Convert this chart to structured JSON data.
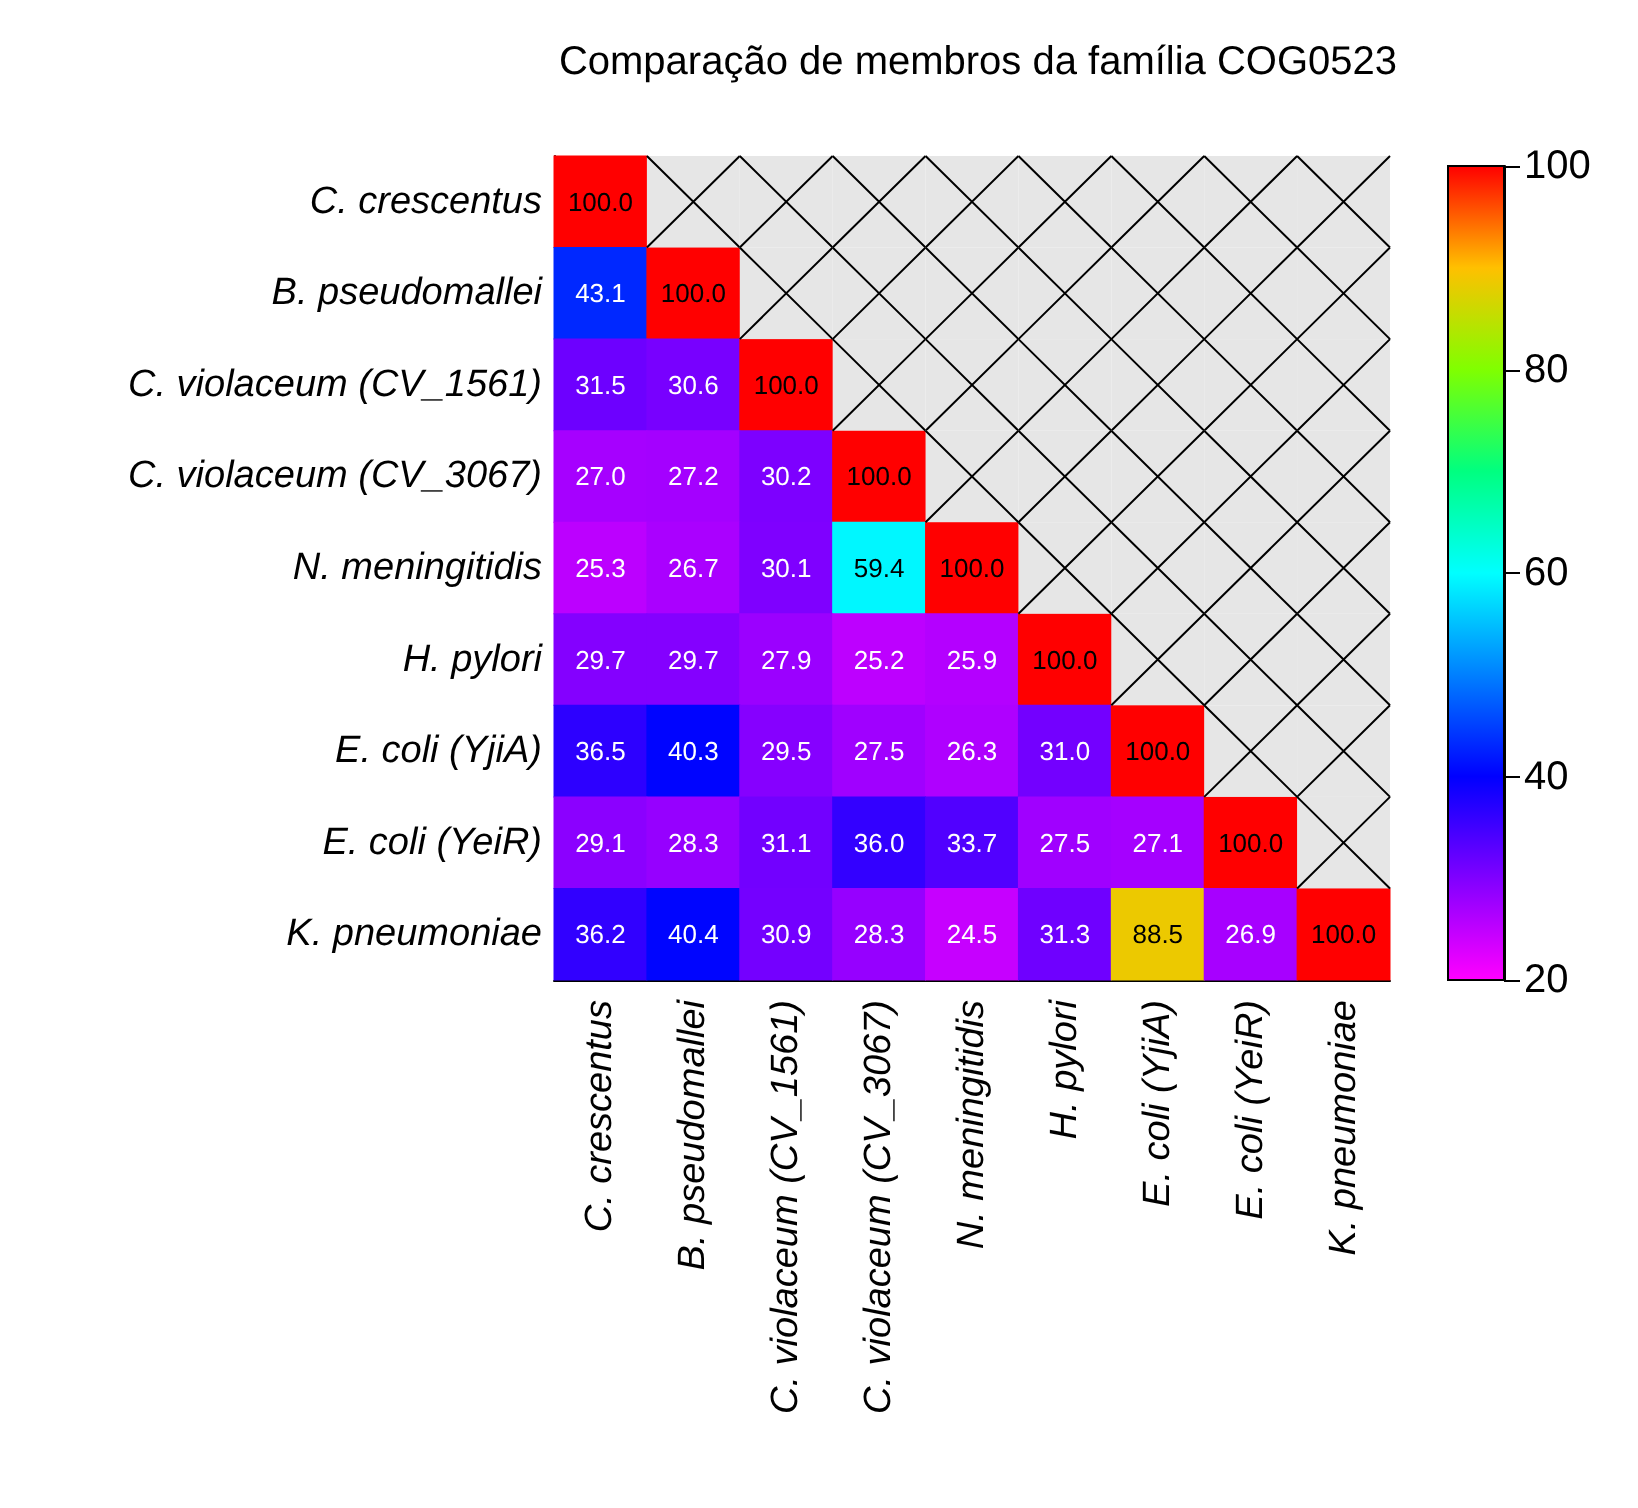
{
  "chart_data": {
    "type": "heatmap",
    "title": "Comparação de membros da família COG0523",
    "categories": [
      "C. crescentus",
      "B. pseudomallei",
      "C. violaceum (CV_1561)",
      "C. violaceum (CV_3067)",
      "N. meningitidis",
      "H. pylori",
      "E. coli (YjiA)",
      "E. coli (YeiR)",
      "K. pneumoniae"
    ],
    "y_categories": [
      "C. crescentus",
      "B. pseudomallei",
      "C. violaceum (CV_1561)",
      "C. violaceum (CV_3067)",
      "N. meningitidis",
      "H. pylori",
      "E. coli (YjiA)",
      "E. coli (YeiR)",
      "K. pneumoniae"
    ],
    "cells": [
      [
        100,
        null,
        null,
        null,
        null,
        null,
        null,
        null,
        null
      ],
      [
        43.1,
        100,
        null,
        null,
        null,
        null,
        null,
        null,
        null
      ],
      [
        31.5,
        30.6,
        100,
        null,
        null,
        null,
        null,
        null,
        null
      ],
      [
        27.0,
        27.2,
        30.2,
        100,
        null,
        null,
        null,
        null,
        null
      ],
      [
        25.3,
        26.7,
        30.1,
        59.4,
        100,
        null,
        null,
        null,
        null
      ],
      [
        29.7,
        29.7,
        27.9,
        25.2,
        25.9,
        100,
        null,
        null,
        null
      ],
      [
        36.5,
        40.3,
        29.5,
        27.5,
        26.3,
        31.0,
        100,
        null,
        null
      ],
      [
        29.1,
        28.3,
        31.1,
        36.0,
        33.7,
        27.5,
        27.1,
        100,
        null
      ],
      [
        36.2,
        40.4,
        30.9,
        28.3,
        24.5,
        31.3,
        88.5,
        26.9,
        100
      ]
    ],
    "cell_labels": [
      [
        "100.0",
        null,
        null,
        null,
        null,
        null,
        null,
        null,
        null
      ],
      [
        "43.1",
        "100.0",
        null,
        null,
        null,
        null,
        null,
        null,
        null
      ],
      [
        "31.5",
        "30.6",
        "100.0",
        null,
        null,
        null,
        null,
        null,
        null
      ],
      [
        "27.0",
        "27.2",
        "30.2",
        "100.0",
        null,
        null,
        null,
        null,
        null
      ],
      [
        "25.3",
        "26.7",
        "30.1",
        "59.4",
        "100.0",
        null,
        null,
        null,
        null
      ],
      [
        "29.7",
        "29.7",
        "27.9",
        "25.2",
        "25.9",
        "100.0",
        null,
        null,
        null
      ],
      [
        "36.5",
        "40.3",
        "29.5",
        "27.5",
        "26.3",
        "31.0",
        "100.0",
        null,
        null
      ],
      [
        "29.1",
        "28.3",
        "31.1",
        "36.0",
        "33.7",
        "27.5",
        "27.1",
        "100.0",
        null
      ],
      [
        "36.2",
        "40.4",
        "30.9",
        "28.3",
        "24.5",
        "31.3",
        "88.5",
        "26.9",
        "100.0"
      ]
    ],
    "clim": [
      20,
      100
    ],
    "cticks": [
      20,
      40,
      60,
      80,
      100
    ]
  }
}
